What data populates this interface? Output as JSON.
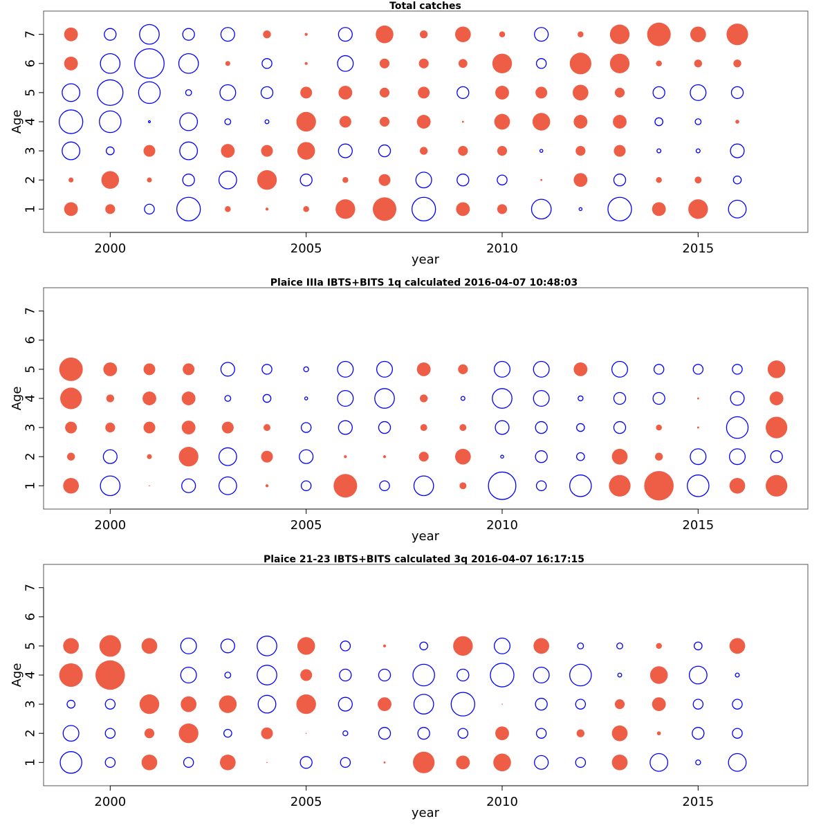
{
  "colors": {
    "positive": "#EE5E46",
    "negative": "#0000FF",
    "frame": "#555555",
    "axis": "#000000"
  },
  "chart_data": [
    {
      "type": "scatter",
      "subtype": "bubble",
      "title": "Total catches",
      "xlabel": "year",
      "ylabel": "Age",
      "xlim": [
        1998.3,
        2017.8
      ],
      "ylim": [
        0.2,
        7.8
      ],
      "xticks": [
        2000,
        2005,
        2010,
        2015
      ],
      "yticks": [
        1,
        2,
        3,
        4,
        5,
        6,
        7
      ],
      "legend": "none",
      "encoding": "bubble radius proportional to |value|; positive = filled red, negative = open blue",
      "years": [
        1999,
        2000,
        2001,
        2002,
        2003,
        2004,
        2005,
        2006,
        2007,
        2008,
        2009,
        2010,
        2011,
        2012,
        2013,
        2014,
        2015,
        2016
      ],
      "ages": [
        1,
        2,
        3,
        4,
        5,
        6,
        7
      ],
      "values_by_age": {
        "7": [
          7,
          -6,
          -10,
          -6,
          -7,
          4,
          1.5,
          -7,
          9,
          4,
          8,
          3,
          -7,
          3,
          10,
          12,
          8,
          11
        ],
        "6": [
          7,
          -10,
          -15,
          -10,
          2.5,
          -5,
          1.5,
          -8,
          5,
          5,
          4.5,
          10,
          -5,
          11,
          10,
          3,
          4,
          4
        ],
        "5": [
          -9,
          -13,
          -11,
          -3,
          -8,
          -6,
          6,
          7,
          5,
          6,
          -6,
          7,
          6,
          8,
          5,
          -6,
          -8,
          -6
        ],
        "4": [
          -12,
          -11,
          -1,
          -9,
          -3,
          -2,
          10,
          6,
          5,
          7,
          1,
          8,
          9,
          7,
          7,
          -4,
          -3,
          2
        ],
        "3": [
          -9,
          -4,
          6,
          -9,
          7,
          6,
          9,
          -7,
          -6,
          4,
          5,
          5,
          -1.5,
          5,
          6,
          -2,
          -2,
          -7
        ],
        "2": [
          2.5,
          9,
          2.5,
          -6,
          -9,
          10,
          -6,
          3,
          6,
          -8,
          -6,
          -5,
          1,
          7,
          -6,
          3,
          3.5,
          -4
        ],
        "1": [
          7,
          5,
          -5,
          -12,
          3,
          1.5,
          3,
          10,
          12,
          -12,
          7,
          5,
          -10,
          -1.5,
          -12,
          7,
          10,
          -9
        ]
      }
    },
    {
      "type": "scatter",
      "subtype": "bubble",
      "title": "Plaice IIIa IBTS+BITS 1q calculated 2016-04-07 10:48:03",
      "xlabel": "year",
      "ylabel": "Age",
      "xlim": [
        1998.3,
        2017.8
      ],
      "ylim": [
        0.2,
        7.8
      ],
      "xticks": [
        2000,
        2005,
        2010,
        2015
      ],
      "yticks": [
        1,
        2,
        3,
        4,
        5,
        6,
        7
      ],
      "legend": "none",
      "encoding": "bubble radius proportional to |value|; positive = filled red, negative = open blue",
      "years": [
        1999,
        2000,
        2001,
        2002,
        2003,
        2004,
        2005,
        2006,
        2007,
        2008,
        2009,
        2010,
        2011,
        2012,
        2013,
        2014,
        2015,
        2016,
        2017
      ],
      "ages": [
        1,
        2,
        3,
        4,
        5
      ],
      "values_by_age": {
        "5": [
          12,
          7,
          6,
          6,
          -7,
          -5,
          -2.5,
          -8,
          -8,
          7,
          5,
          -8,
          -8,
          7,
          -8,
          -5,
          -5,
          -5,
          9
        ],
        "4": [
          11,
          4,
          7,
          7,
          -3,
          -4,
          -1.5,
          -8,
          -10,
          4,
          -2,
          -10,
          -8,
          -2.5,
          -6,
          -6,
          1,
          -7,
          7
        ],
        "3": [
          6,
          5,
          6,
          7,
          6,
          3.5,
          -5,
          -7,
          -6,
          3.5,
          3.5,
          -7,
          -6,
          -4,
          -6,
          3,
          1,
          -11,
          11
        ],
        "2": [
          4,
          -7,
          2.5,
          10,
          -9,
          6,
          -7,
          1.5,
          1.5,
          5,
          8,
          -1.5,
          -6,
          -4,
          8,
          4,
          -8,
          -8,
          -6
        ],
        "1": [
          8,
          -10,
          0.5,
          -7,
          -9,
          1.5,
          -5,
          12,
          -5,
          -10,
          3.5,
          -14,
          -5,
          -11,
          11,
          15,
          -11,
          8,
          11
        ]
      }
    },
    {
      "type": "scatter",
      "subtype": "bubble",
      "title": "Plaice 21-23 IBTS+BITS calculated 3q 2016-04-07 16:17:15",
      "xlabel": "year",
      "ylabel": "Age",
      "xlim": [
        1998.3,
        2017.8
      ],
      "ylim": [
        0.2,
        7.8
      ],
      "xticks": [
        2000,
        2005,
        2010,
        2015
      ],
      "yticks": [
        1,
        2,
        3,
        4,
        5,
        6,
        7
      ],
      "legend": "none",
      "encoding": "bubble radius proportional to |value|; positive = filled red, negative = open blue",
      "years": [
        1999,
        2000,
        2001,
        2002,
        2003,
        2004,
        2005,
        2006,
        2007,
        2008,
        2009,
        2010,
        2011,
        2012,
        2013,
        2014,
        2015,
        2016
      ],
      "ages": [
        1,
        2,
        3,
        4,
        5
      ],
      "values_by_age": {
        "5": [
          8,
          11,
          8,
          -8,
          -7,
          -10,
          9,
          -5,
          1.5,
          -4,
          10,
          -8,
          8,
          -3,
          -3,
          3,
          -4,
          8
        ],
        "4": [
          12,
          15,
          null,
          -8,
          -3,
          -10,
          6,
          -6,
          -6,
          -11,
          -6,
          -12,
          -8,
          -11,
          -2,
          9,
          -9,
          -2
        ],
        "3": [
          -4,
          -5,
          10,
          8,
          9,
          -9,
          10,
          -7,
          7,
          -10,
          -12,
          0.5,
          -6,
          -5,
          5,
          7,
          -5,
          -5
        ],
        "2": [
          -8,
          -5,
          5,
          10,
          -4,
          6,
          0.5,
          -2.5,
          -6,
          -6,
          -5,
          7,
          -5,
          4,
          8,
          2,
          -6,
          -5
        ],
        "1": [
          -11,
          -5,
          8,
          -5,
          8,
          0.5,
          -6,
          -5,
          1,
          11,
          7,
          9,
          -7,
          -5,
          8,
          -9,
          -2.5,
          -9
        ]
      }
    }
  ]
}
